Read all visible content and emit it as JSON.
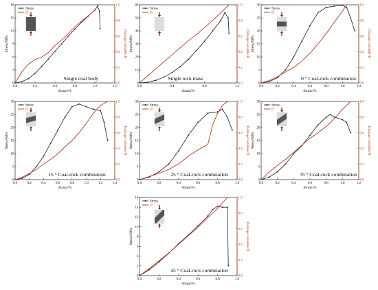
{
  "colors": {
    "stress": "#1a1a1a",
    "damage": "#b33a1e",
    "axis": "#000000",
    "specimen_coal": "#555555",
    "specimen_rock": "#dddddd",
    "arrow": "#8b2a10"
  },
  "legend": {
    "stress": "Stress",
    "damage": "D"
  },
  "chart_data": [
    {
      "type": "line",
      "title": "Single coal body",
      "xlabel": "Strain/%",
      "ylabel": "Stress/MPa",
      "y2label": "Damage variable/D",
      "xlim": [
        0,
        1.5
      ],
      "ylim": [
        0,
        18
      ],
      "y2lim": [
        0,
        1
      ],
      "xticks": [
        "0.0",
        "0.3",
        "0.6",
        "0.9",
        "1.2",
        "1.5"
      ],
      "yticks": [
        "0",
        "3",
        "6",
        "9",
        "12",
        "15",
        "18"
      ],
      "y2ticks": [
        "0.0",
        "0.2",
        "0.4",
        "0.6",
        "0.8",
        "1.0"
      ],
      "series": [
        {
          "name": "Stress",
          "axis": "left",
          "x": [
            0,
            0.1,
            0.2,
            0.3,
            0.4,
            0.5,
            0.6,
            0.7,
            0.8,
            0.9,
            1.0,
            1.1,
            1.2,
            1.24,
            1.27,
            1.28
          ],
          "y": [
            0,
            0.3,
            1.0,
            2.2,
            3.8,
            5.5,
            7.3,
            9.0,
            10.8,
            12.4,
            14.0,
            15.4,
            16.8,
            17.7,
            16.5,
            12.5
          ]
        },
        {
          "name": "D",
          "axis": "right",
          "x": [
            0,
            0.1,
            0.2,
            0.3,
            0.4,
            0.5,
            0.6,
            0.7,
            0.8,
            0.9,
            1.0,
            1.1,
            1.2,
            1.26
          ],
          "y": [
            0,
            0.14,
            0.24,
            0.3,
            0.33,
            0.39,
            0.48,
            0.55,
            0.63,
            0.72,
            0.79,
            0.86,
            0.93,
            1.0
          ]
        }
      ]
    },
    {
      "type": "line",
      "title": "Single rock mass",
      "xlabel": "Strain/%",
      "ylabel": "Stress/MPa",
      "y2label": "Damage variable/D",
      "xlim": [
        0,
        1.2
      ],
      "ylim": [
        0,
        60
      ],
      "y2lim": [
        0,
        1
      ],
      "xticks": [
        "0.0",
        "0.4",
        "0.8",
        "1.2"
      ],
      "yticks": [
        "0",
        "10",
        "20",
        "30",
        "40",
        "50",
        "60"
      ],
      "y2ticks": [
        "0.0",
        "0.2",
        "0.4",
        "0.6",
        "0.8",
        "1.0"
      ],
      "series": [
        {
          "name": "Stress",
          "axis": "left",
          "x": [
            0,
            0.1,
            0.2,
            0.3,
            0.4,
            0.5,
            0.6,
            0.7,
            0.8,
            0.9,
            1.0,
            1.05,
            1.09,
            1.1
          ],
          "y": [
            0,
            0.5,
            2,
            4.5,
            8,
            12.5,
            18,
            25,
            32,
            40,
            48,
            54,
            50,
            38
          ]
        },
        {
          "name": "D",
          "axis": "right",
          "x": [
            0,
            0.1,
            0.2,
            0.3,
            0.4,
            0.5,
            0.6,
            0.7,
            0.8,
            0.9,
            1.0,
            1.1
          ],
          "y": [
            0,
            0.09,
            0.18,
            0.27,
            0.36,
            0.45,
            0.54,
            0.62,
            0.71,
            0.8,
            0.9,
            1.0
          ]
        }
      ]
    },
    {
      "type": "line",
      "title": "0 ° Coal-rock combination",
      "xlabel": "Strain/%",
      "ylabel": "Stress/MPa",
      "y2label": "Damage variable/D",
      "xlim": [
        0,
        1.2
      ],
      "ylim": [
        0,
        30
      ],
      "y2lim": [
        0,
        1
      ],
      "xticks": [
        "0.0",
        "0.2",
        "0.4",
        "0.6",
        "0.8",
        "1.0",
        "1.2"
      ],
      "yticks": [
        "0",
        "5",
        "10",
        "15",
        "20",
        "25",
        "30"
      ],
      "y2ticks": [
        "0.0",
        "0.2",
        "0.4",
        "0.6",
        "0.8",
        "1.0"
      ],
      "series": [
        {
          "name": "Stress",
          "axis": "left",
          "x": [
            0,
            0.1,
            0.2,
            0.3,
            0.4,
            0.5,
            0.6,
            0.7,
            0.8,
            0.9,
            1.0,
            1.05,
            1.1,
            1.15
          ],
          "y": [
            0,
            0.5,
            2,
            5,
            10,
            16,
            22,
            27,
            29,
            29.5,
            29.8,
            29,
            25,
            20
          ]
        },
        {
          "name": "D",
          "axis": "right",
          "x": [
            0,
            0.1,
            0.2,
            0.3,
            0.4,
            0.5,
            0.6,
            0.7,
            0.8,
            0.9,
            1.0,
            1.05
          ],
          "y": [
            0,
            0.03,
            0.08,
            0.14,
            0.2,
            0.28,
            0.38,
            0.5,
            0.63,
            0.78,
            0.92,
            1.0
          ]
        }
      ]
    },
    {
      "type": "line",
      "title": "15 ° Coal-rock combination",
      "xlabel": "Strain/%",
      "ylabel": "Stress/MPa",
      "y2label": "Damage variable/D",
      "xlim": [
        0,
        1.4
      ],
      "ylim": [
        0,
        30
      ],
      "y2lim": [
        0,
        1
      ],
      "xticks": [
        "0.0",
        "0.2",
        "0.4",
        "0.6",
        "0.8",
        "1.0",
        "1.2",
        "1.4"
      ],
      "yticks": [
        "0",
        "5",
        "10",
        "15",
        "20",
        "25",
        "30"
      ],
      "y2ticks": [
        "0.0",
        "0.2",
        "0.4",
        "0.6",
        "0.8",
        "1.0"
      ],
      "series": [
        {
          "name": "Stress",
          "axis": "left",
          "x": [
            0,
            0.1,
            0.2,
            0.3,
            0.4,
            0.5,
            0.6,
            0.7,
            0.8,
            0.9,
            1.0,
            1.1,
            1.2,
            1.25,
            1.3
          ],
          "y": [
            0,
            0.5,
            2,
            5,
            9,
            14,
            19,
            24,
            28,
            29,
            28,
            27,
            26.5,
            22,
            15
          ]
        },
        {
          "name": "D",
          "axis": "right",
          "x": [
            0,
            0.1,
            0.2,
            0.3,
            0.4,
            0.5,
            0.6,
            0.7,
            0.8,
            0.9,
            1.0,
            1.1,
            1.2,
            1.3
          ],
          "y": [
            0,
            0.03,
            0.08,
            0.13,
            0.2,
            0.26,
            0.33,
            0.42,
            0.5,
            0.6,
            0.72,
            0.85,
            0.95,
            1.0
          ]
        }
      ]
    },
    {
      "type": "line",
      "title": "25 ° Coal-rock combination",
      "xlabel": "Strain/%",
      "ylabel": "Stress/MPa",
      "y2label": "Damage variable/D",
      "xlim": [
        0,
        1.0
      ],
      "ylim": [
        0,
        30
      ],
      "y2lim": [
        0,
        1
      ],
      "xticks": [
        "0.0",
        "0.2",
        "0.4",
        "0.6",
        "0.8",
        "1.0"
      ],
      "yticks": [
        "0",
        "5",
        "10",
        "15",
        "20",
        "25",
        "30"
      ],
      "y2ticks": [
        "0.0",
        "0.2",
        "0.4",
        "0.6",
        "0.8",
        "1.0"
      ],
      "series": [
        {
          "name": "Stress",
          "axis": "left",
          "x": [
            0,
            0.1,
            0.2,
            0.3,
            0.4,
            0.5,
            0.6,
            0.7,
            0.8,
            0.85,
            0.9,
            0.95
          ],
          "y": [
            0,
            1,
            3,
            6,
            11,
            17,
            22,
            25.5,
            26,
            27,
            24,
            19
          ]
        },
        {
          "name": "D",
          "axis": "right",
          "x": [
            0,
            0.1,
            0.2,
            0.3,
            0.4,
            0.5,
            0.6,
            0.7,
            0.75,
            0.8,
            0.85,
            0.9
          ],
          "y": [
            0,
            0.04,
            0.08,
            0.13,
            0.2,
            0.3,
            0.38,
            0.45,
            0.7,
            0.85,
            0.95,
            1.0
          ]
        }
      ]
    },
    {
      "type": "line",
      "title": "35 ° Coal-rock combination",
      "xlabel": "Strain/%",
      "ylabel": "Stress/MPa",
      "y2label": "Damage variable/D",
      "xlim": [
        0,
        1.2
      ],
      "ylim": [
        0,
        30
      ],
      "y2lim": [
        0,
        1
      ],
      "xticks": [
        "0.0",
        "0.2",
        "0.4",
        "0.6",
        "0.8",
        "1.0",
        "1.2"
      ],
      "yticks": [
        "0",
        "5",
        "10",
        "15",
        "20",
        "25",
        "30"
      ],
      "y2ticks": [
        "0.0",
        "0.2",
        "0.4",
        "0.6",
        "0.8",
        "1.0"
      ],
      "series": [
        {
          "name": "Stress",
          "axis": "left",
          "x": [
            0,
            0.1,
            0.2,
            0.3,
            0.4,
            0.5,
            0.6,
            0.7,
            0.8,
            0.85,
            0.9,
            1.0,
            1.05,
            1.1
          ],
          "y": [
            0,
            1,
            3,
            6,
            10,
            13,
            17,
            21,
            24,
            25,
            24,
            23,
            22,
            18
          ]
        },
        {
          "name": "D",
          "axis": "right",
          "x": [
            0,
            0.1,
            0.2,
            0.3,
            0.4,
            0.5,
            0.6,
            0.7,
            0.8,
            0.9,
            1.0,
            1.1
          ],
          "y": [
            0,
            0.1,
            0.18,
            0.26,
            0.35,
            0.44,
            0.53,
            0.6,
            0.68,
            0.78,
            0.9,
            1.0
          ]
        }
      ]
    },
    {
      "type": "line",
      "title": "45 ° Coal-rock combination",
      "xlabel": "Strain/%",
      "ylabel": "Stress/MPa",
      "y2label": "Damage variable/D",
      "xlim": [
        0,
        1.0
      ],
      "ylim": [
        0,
        16
      ],
      "y2lim": [
        0,
        1
      ],
      "xticks": [
        "0.0",
        "0.2",
        "0.4",
        "0.6",
        "0.8",
        "1.0"
      ],
      "yticks": [
        "0",
        "2",
        "4",
        "6",
        "8",
        "10",
        "12",
        "14",
        "16"
      ],
      "y2ticks": [
        "0.0",
        "0.2",
        "0.4",
        "0.6",
        "0.8",
        "1.0"
      ],
      "series": [
        {
          "name": "Stress",
          "axis": "left",
          "x": [
            0,
            0.1,
            0.2,
            0.3,
            0.4,
            0.5,
            0.6,
            0.7,
            0.75,
            0.8,
            0.85,
            0.9,
            0.91
          ],
          "y": [
            0,
            1.2,
            2.8,
            4.6,
            6.5,
            8.3,
            10.2,
            12.2,
            13.5,
            14.2,
            14.0,
            14.0,
            2.0
          ]
        },
        {
          "name": "D",
          "axis": "right",
          "x": [
            0,
            0.1,
            0.2,
            0.3,
            0.4,
            0.5,
            0.6,
            0.7,
            0.8,
            0.9
          ],
          "y": [
            0,
            0.09,
            0.19,
            0.29,
            0.4,
            0.51,
            0.62,
            0.74,
            0.86,
            1.0
          ]
        }
      ]
    }
  ]
}
